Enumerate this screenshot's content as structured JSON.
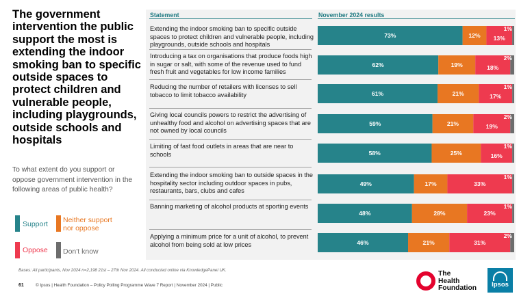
{
  "headline": "The government intervention the public support the most is extending the indoor smoking ban to specific outside spaces to protect children and vulnerable people, including playgrounds, outside schools and hospitals",
  "question": "To what extent do you support or oppose government intervention in the following areas of public health?",
  "legend": [
    {
      "label": "Support",
      "color": "#26838a"
    },
    {
      "label": "Neither support nor oppose",
      "color": "#e87722"
    },
    {
      "label": "Oppose",
      "color": "#ee3a4f"
    },
    {
      "label": "Don't know",
      "color": "#6d6d6d"
    }
  ],
  "chart_data": {
    "type": "bar",
    "stacked": true,
    "orientation": "horizontal",
    "column_headers": {
      "statement": "Statement",
      "results": "November 2024 results"
    },
    "categories": [
      "Extending the indoor smoking ban to specific outside spaces to protect children and vulnerable people, including playgrounds, outside schools and hospitals",
      "Introducing a tax on organisations that produce foods high in sugar or salt, with some of the revenue used to fund fresh fruit and vegetables for low income families",
      "Reducing the number of retailers with licenses to sell tobacco to limit tobacco availability",
      "Giving local councils powers to restrict the advertising of unhealthy food and alcohol on advertising spaces that are not owned by local councils",
      "Limiting of fast food outlets in areas that are near to schools",
      "Extending the indoor smoking ban to outside spaces in the hospitality sector including outdoor spaces in pubs, restaurants, bars, clubs and cafes",
      "Banning marketing of alcohol products at sporting events",
      "Applying a minimum price for a unit of alcohol, to prevent alcohol from being sold at low prices"
    ],
    "series": [
      {
        "name": "Support",
        "color": "#26838a",
        "values": [
          73,
          62,
          61,
          59,
          58,
          49,
          48,
          46
        ]
      },
      {
        "name": "Neither support nor oppose",
        "color": "#e87722",
        "values": [
          12,
          19,
          21,
          21,
          25,
          17,
          28,
          21
        ]
      },
      {
        "name": "Oppose",
        "color": "#ee3a4f",
        "values": [
          13,
          18,
          17,
          19,
          16,
          33,
          23,
          31
        ]
      },
      {
        "name": "Don't know",
        "color": "#6d6d6d",
        "values": [
          1,
          2,
          1,
          2,
          1,
          1,
          1,
          2
        ]
      }
    ],
    "value_suffix": "%",
    "xlim": [
      0,
      100
    ]
  },
  "footnote": "Bases: All participants, Nov 2024 n=2,198  21st – 27th Nov 2024. All conducted online via KnowledgePanel UK.",
  "page_number": "61",
  "copyright": "© Ipsos | Health Foundation – Policy Polling Programme Wave 7 Report | November 2024 | Public",
  "logos": {
    "health_foundation": "The Health Foundation",
    "ipsos": "Ipsos"
  }
}
